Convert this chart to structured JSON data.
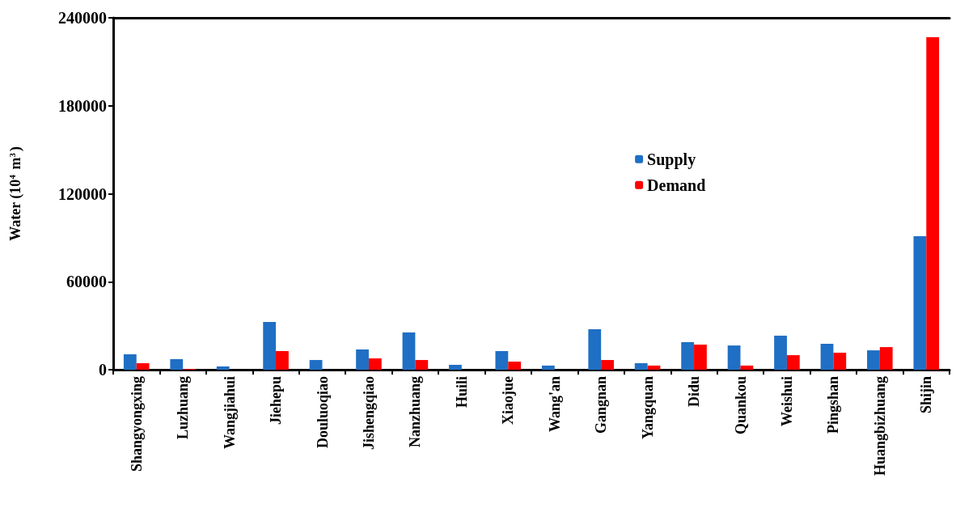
{
  "chart_data": {
    "type": "bar",
    "ylabel": "Water (10$^{4}$ m$^{3}$)",
    "categories": [
      "Shangyongxing",
      "Luzhuang",
      "Wangjiahui",
      "Jiehepu",
      "Douluoqiao",
      "Jishengqiao",
      "Nanzhuang",
      "Huili",
      "Xiaojue",
      "Wang'an",
      "Gangnan",
      "Yangquan",
      "Didu",
      "Quankou",
      "Weishui",
      "Pingshan",
      "Huangbizhuang",
      "Shijin"
    ],
    "series": [
      {
        "name": "Supply",
        "color": "#1f6fc5",
        "values": [
          10500,
          7200,
          2200,
          32500,
          6600,
          13800,
          25400,
          3300,
          12700,
          2800,
          27600,
          4400,
          18800,
          16500,
          23200,
          17700,
          13200,
          91000
        ]
      },
      {
        "name": "Demand",
        "color": "#ff0000",
        "values": [
          4400,
          500,
          0,
          12700,
          0,
          7700,
          6600,
          0,
          5500,
          0,
          6600,
          2800,
          17100,
          2800,
          9900,
          11600,
          15400,
          226800
        ]
      }
    ],
    "ylim": [
      0,
      240000
    ],
    "yticks": [
      0,
      60000,
      120000,
      180000,
      240000
    ],
    "grid": false,
    "legend": "right"
  }
}
